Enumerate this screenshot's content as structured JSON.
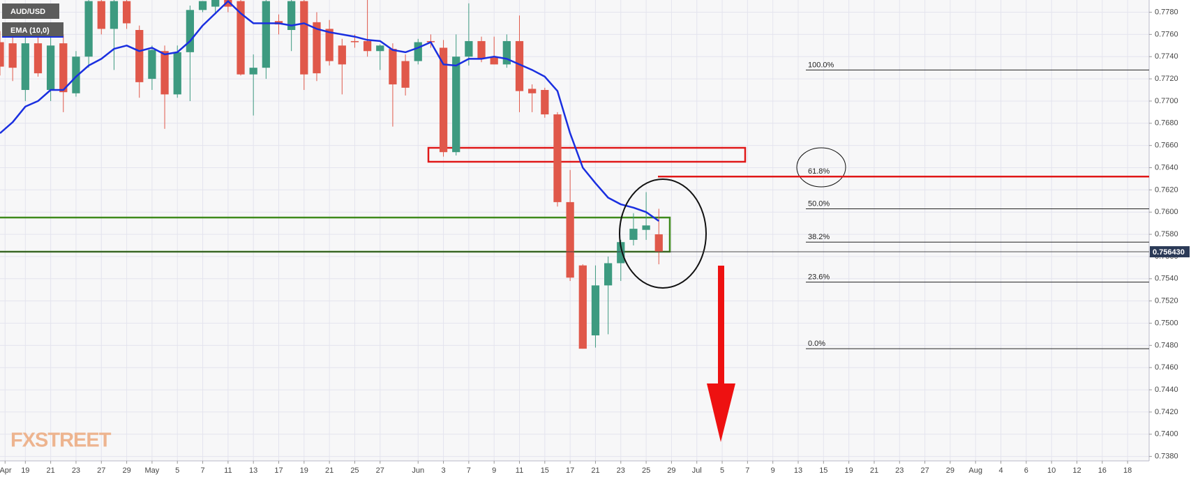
{
  "chart_data": {
    "type": "candlestick",
    "symbol": "AUD/USD",
    "watermark": "FXSTREET",
    "grid": true,
    "xlim": [
      0,
      90.7
    ],
    "xticks": [
      {
        "value": 0.4,
        "label": "Apr"
      },
      {
        "value": 2,
        "label": "19"
      },
      {
        "value": 4,
        "label": "21"
      },
      {
        "value": 6,
        "label": "23"
      },
      {
        "value": 8,
        "label": "27"
      },
      {
        "value": 10,
        "label": "29"
      },
      {
        "value": 12,
        "label": "May"
      },
      {
        "value": 14,
        "label": "5"
      },
      {
        "value": 16,
        "label": "7"
      },
      {
        "value": 18,
        "label": "11"
      },
      {
        "value": 20,
        "label": "13"
      },
      {
        "value": 22,
        "label": "17"
      },
      {
        "value": 24,
        "label": "19"
      },
      {
        "value": 26,
        "label": "21"
      },
      {
        "value": 28,
        "label": "25"
      },
      {
        "value": 30,
        "label": "27"
      },
      {
        "value": 33,
        "label": "Jun"
      },
      {
        "value": 35,
        "label": "3"
      },
      {
        "value": 37,
        "label": "7"
      },
      {
        "value": 39,
        "label": "9"
      },
      {
        "value": 41,
        "label": "11"
      },
      {
        "value": 43,
        "label": "15"
      },
      {
        "value": 45,
        "label": "17"
      },
      {
        "value": 47,
        "label": "21"
      },
      {
        "value": 49,
        "label": "23"
      },
      {
        "value": 51,
        "label": "25"
      },
      {
        "value": 53,
        "label": "29"
      },
      {
        "value": 55,
        "label": "Jul"
      },
      {
        "value": 57,
        "label": "5"
      },
      {
        "value": 59,
        "label": "7"
      },
      {
        "value": 61,
        "label": "9"
      },
      {
        "value": 63,
        "label": "13"
      },
      {
        "value": 65,
        "label": "15"
      },
      {
        "value": 67,
        "label": "19"
      },
      {
        "value": 69,
        "label": "21"
      },
      {
        "value": 71,
        "label": "23"
      },
      {
        "value": 73,
        "label": "27"
      },
      {
        "value": 75,
        "label": "29"
      },
      {
        "value": 77,
        "label": "Aug"
      },
      {
        "value": 79,
        "label": "4"
      },
      {
        "value": 81,
        "label": "6"
      },
      {
        "value": 83,
        "label": "10"
      },
      {
        "value": 85,
        "label": "12"
      },
      {
        "value": 87,
        "label": "16"
      },
      {
        "value": 89,
        "label": "18"
      }
    ],
    "ylim": [
      0.7376,
      0.7791
    ],
    "yticks": [
      {
        "value": 0.738,
        "label": "0.7380"
      },
      {
        "value": 0.74,
        "label": "0.7400"
      },
      {
        "value": 0.742,
        "label": "0.7420"
      },
      {
        "value": 0.744,
        "label": "0.7440"
      },
      {
        "value": 0.746,
        "label": "0.7460"
      },
      {
        "value": 0.748,
        "label": "0.7480"
      },
      {
        "value": 0.75,
        "label": "0.7500"
      },
      {
        "value": 0.752,
        "label": "0.7520"
      },
      {
        "value": 0.754,
        "label": "0.7540"
      },
      {
        "value": 0.756,
        "label": "0.7560"
      },
      {
        "value": 0.758,
        "label": "0.7580"
      },
      {
        "value": 0.76,
        "label": "0.7600"
      },
      {
        "value": 0.762,
        "label": "0.7620"
      },
      {
        "value": 0.764,
        "label": "0.7640"
      },
      {
        "value": 0.766,
        "label": "0.7660"
      },
      {
        "value": 0.768,
        "label": "0.7680"
      },
      {
        "value": 0.77,
        "label": "0.7700"
      },
      {
        "value": 0.772,
        "label": "0.7720"
      },
      {
        "value": 0.774,
        "label": "0.7740"
      },
      {
        "value": 0.776,
        "label": "0.7760"
      },
      {
        "value": 0.778,
        "label": "0.7780"
      }
    ],
    "series": [
      {
        "name": "AUD/USD",
        "up_color": "#3d9a80",
        "down_color": "#e0584a",
        "x": [
          0,
          1,
          2,
          3,
          4,
          5,
          6,
          7,
          8,
          9,
          10,
          11,
          12,
          13,
          14,
          15,
          16,
          17,
          18,
          19,
          20,
          21,
          22,
          23,
          24,
          25,
          26,
          27,
          28,
          29,
          30,
          31,
          32,
          33,
          34,
          35,
          36,
          37,
          38,
          39,
          40,
          41,
          42,
          43,
          44,
          45,
          46,
          47,
          48,
          49,
          50,
          51,
          52
        ],
        "open": [
          0.7753,
          0.7752,
          0.771,
          0.7752,
          0.771,
          0.7752,
          0.7707,
          0.774,
          0.779,
          0.7765,
          0.779,
          0.7764,
          0.772,
          0.7745,
          0.7706,
          0.7744,
          0.7782,
          0.7785,
          0.7792,
          0.779,
          0.7724,
          0.773,
          0.7772,
          0.7764,
          0.779,
          0.7771,
          0.7765,
          0.775,
          0.7754,
          0.7754,
          0.7745,
          0.7747,
          0.7736,
          0.7736,
          0.7754,
          0.7748,
          0.7654,
          0.774,
          0.7754,
          0.774,
          0.7733,
          0.7754,
          0.7711,
          0.771,
          0.7688,
          0.7609,
          0.7552,
          0.7489,
          0.7534,
          0.7554,
          0.7575,
          0.7584,
          0.758
        ],
        "high": [
          0.7763,
          0.776,
          0.7768,
          0.7762,
          0.7758,
          0.776,
          0.7745,
          0.7795,
          0.7795,
          0.7795,
          0.7795,
          0.7768,
          0.775,
          0.775,
          0.775,
          0.7786,
          0.779,
          0.7795,
          0.7795,
          0.7795,
          0.7742,
          0.7795,
          0.7778,
          0.7795,
          0.7795,
          0.778,
          0.7773,
          0.7756,
          0.776,
          0.7792,
          0.7751,
          0.7752,
          0.7742,
          0.7756,
          0.776,
          0.7755,
          0.776,
          0.7788,
          0.7758,
          0.7758,
          0.776,
          0.7777,
          0.7715,
          0.7712,
          0.769,
          0.7638,
          0.7553,
          0.7552,
          0.756,
          0.7575,
          0.7599,
          0.7618,
          0.7603
        ],
        "low": [
          0.7723,
          0.7718,
          0.77,
          0.7722,
          0.77,
          0.769,
          0.7704,
          0.773,
          0.776,
          0.7728,
          0.7765,
          0.7703,
          0.771,
          0.7675,
          0.7703,
          0.77,
          0.778,
          0.7778,
          0.778,
          0.7723,
          0.7687,
          0.772,
          0.776,
          0.7745,
          0.771,
          0.7718,
          0.7732,
          0.7706,
          0.7748,
          0.774,
          0.7728,
          0.7677,
          0.7705,
          0.7733,
          0.7748,
          0.765,
          0.7651,
          0.7732,
          0.7735,
          0.7733,
          0.773,
          0.769,
          0.769,
          0.7685,
          0.7605,
          0.7538,
          0.7477,
          0.7478,
          0.749,
          0.7538,
          0.757,
          0.7575,
          0.7553
        ],
        "close": [
          0.7731,
          0.773,
          0.7752,
          0.7725,
          0.775,
          0.7708,
          0.774,
          0.779,
          0.7765,
          0.779,
          0.777,
          0.7717,
          0.7746,
          0.7706,
          0.7744,
          0.7782,
          0.779,
          0.7792,
          0.7785,
          0.7724,
          0.773,
          0.779,
          0.7769,
          0.779,
          0.7724,
          0.7725,
          0.7736,
          0.7733,
          0.7753,
          0.7745,
          0.775,
          0.7715,
          0.7712,
          0.7753,
          0.7753,
          0.7654,
          0.774,
          0.7754,
          0.7738,
          0.7733,
          0.7754,
          0.7709,
          0.7707,
          0.7688,
          0.7609,
          0.7541,
          0.7477,
          0.7534,
          0.7554,
          0.7573,
          0.7585,
          0.7588,
          0.75643
        ]
      }
    ],
    "indicator": {
      "name": "EMA (10,0)",
      "color": "#1a2fe0",
      "x": [
        0,
        1,
        2,
        3,
        4,
        5,
        6,
        7,
        8,
        9,
        10,
        11,
        12,
        13,
        14,
        15,
        16,
        17,
        18,
        19,
        20,
        21,
        22,
        23,
        24,
        25,
        26,
        27,
        28,
        29,
        30,
        31,
        32,
        33,
        34,
        35,
        36,
        37,
        38,
        39,
        40,
        41,
        42,
        43,
        44,
        45,
        46,
        47,
        48,
        49,
        50,
        51,
        52
      ],
      "values": [
        0.7671,
        0.7681,
        0.7695,
        0.77,
        0.771,
        0.771,
        0.7722,
        0.7732,
        0.7738,
        0.7747,
        0.775,
        0.7745,
        0.7748,
        0.7742,
        0.7744,
        0.7754,
        0.7768,
        0.7779,
        0.779,
        0.7779,
        0.777,
        0.777,
        0.777,
        0.7768,
        0.777,
        0.7765,
        0.7762,
        0.776,
        0.7758,
        0.7755,
        0.7754,
        0.7746,
        0.7744,
        0.7748,
        0.7753,
        0.7733,
        0.7732,
        0.7738,
        0.7738,
        0.774,
        0.7738,
        0.7733,
        0.7728,
        0.7722,
        0.7709,
        0.7671,
        0.764,
        0.7626,
        0.7613,
        0.7607,
        0.7604,
        0.76,
        0.7592
      ]
    },
    "last_price": {
      "value": 0.75643,
      "label": "0.756430"
    },
    "fib_levels": [
      {
        "value": 0.7728,
        "label": "100.0%",
        "color": "#222222"
      },
      {
        "value": 0.7632,
        "label": "61.8%",
        "color": "#e01818"
      },
      {
        "value": 0.7603,
        "label": "50.0%",
        "color": "#222222"
      },
      {
        "value": 0.7573,
        "label": "38.2%",
        "color": "#222222"
      },
      {
        "value": 0.7537,
        "label": "23.6%",
        "color": "#222222"
      },
      {
        "value": 0.7477,
        "label": "0.0%",
        "color": "#222222"
      }
    ]
  }
}
